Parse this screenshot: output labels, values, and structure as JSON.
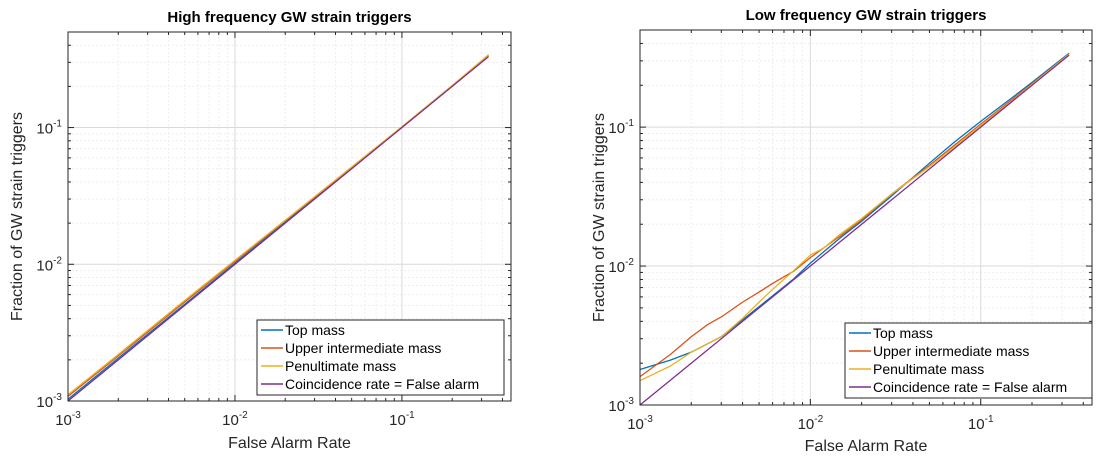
{
  "chart_data": [
    {
      "type": "line",
      "title": "High frequency GW strain triggers",
      "xlabel": "False Alarm Rate",
      "ylabel": "Fraction of GW strain triggers",
      "xscale": "log",
      "yscale": "log",
      "xlim": [
        0.001,
        0.45
      ],
      "ylim": [
        0.001,
        0.5
      ],
      "grid": true,
      "legend_position": "bottom-right",
      "xticks": [
        {
          "base": "10",
          "exp": "-3"
        },
        {
          "base": "10",
          "exp": "-2"
        },
        {
          "base": "10",
          "exp": "-1"
        }
      ],
      "yticks": [
        {
          "base": "10",
          "exp": "-3"
        },
        {
          "base": "10",
          "exp": "-2"
        },
        {
          "base": "10",
          "exp": "-1"
        }
      ],
      "series": [
        {
          "name": "Top mass",
          "color": "#0072BD",
          "x": [
            0.001,
            0.002,
            0.005,
            0.01,
            0.02,
            0.05,
            0.1,
            0.2,
            0.33
          ],
          "y": [
            0.00103,
            0.00206,
            0.0051,
            0.0102,
            0.0203,
            0.0505,
            0.1005,
            0.202,
            0.34
          ]
        },
        {
          "name": "Upper intermediate mass",
          "color": "#D95319",
          "x": [
            0.001,
            0.002,
            0.005,
            0.01,
            0.02,
            0.05,
            0.1,
            0.2,
            0.33
          ],
          "y": [
            0.00108,
            0.00214,
            0.0053,
            0.0105,
            0.0208,
            0.0512,
            0.101,
            0.201,
            0.336
          ]
        },
        {
          "name": "Penultimate mass",
          "color": "#EDB120",
          "x": [
            0.001,
            0.002,
            0.005,
            0.01,
            0.02,
            0.05,
            0.1,
            0.2,
            0.33
          ],
          "y": [
            0.00111,
            0.00219,
            0.00545,
            0.0107,
            0.021,
            0.0515,
            0.1015,
            0.203,
            0.34
          ]
        },
        {
          "name": "Coincidence rate = False alarm",
          "color": "#7E2F8E",
          "x": [
            0.001,
            0.33
          ],
          "y": [
            0.001,
            0.33
          ]
        }
      ]
    },
    {
      "type": "line",
      "title": "Low frequency GW strain triggers",
      "xlabel": "False Alarm Rate",
      "ylabel": "Fraction of GW strain triggers",
      "xscale": "log",
      "yscale": "log",
      "xlim": [
        0.001,
        0.45
      ],
      "ylim": [
        0.001,
        0.5
      ],
      "grid": true,
      "legend_position": "bottom-right",
      "xticks": [
        {
          "base": "10",
          "exp": "-3"
        },
        {
          "base": "10",
          "exp": "-2"
        },
        {
          "base": "10",
          "exp": "-1"
        }
      ],
      "yticks": [
        {
          "base": "10",
          "exp": "-3"
        },
        {
          "base": "10",
          "exp": "-2"
        },
        {
          "base": "10",
          "exp": "-1"
        }
      ],
      "series": [
        {
          "name": "Top mass",
          "color": "#0072BD",
          "x": [
            0.001,
            0.0015,
            0.002,
            0.003,
            0.004,
            0.005,
            0.006,
            0.008,
            0.01,
            0.015,
            0.02,
            0.03,
            0.05,
            0.07,
            0.1,
            0.15,
            0.2,
            0.33
          ],
          "y": [
            0.0018,
            0.0021,
            0.0024,
            0.0031,
            0.0041,
            0.0051,
            0.0061,
            0.0081,
            0.0105,
            0.016,
            0.021,
            0.032,
            0.055,
            0.078,
            0.11,
            0.16,
            0.21,
            0.34
          ]
        },
        {
          "name": "Upper intermediate mass",
          "color": "#D95319",
          "x": [
            0.001,
            0.0015,
            0.002,
            0.0025,
            0.003,
            0.004,
            0.005,
            0.006,
            0.008,
            0.01,
            0.015,
            0.02,
            0.03,
            0.05,
            0.07,
            0.1,
            0.15,
            0.2,
            0.33
          ],
          "y": [
            0.0016,
            0.0023,
            0.0031,
            0.0038,
            0.0043,
            0.0055,
            0.0065,
            0.0075,
            0.0092,
            0.0115,
            0.0165,
            0.0215,
            0.033,
            0.053,
            0.074,
            0.105,
            0.155,
            0.205,
            0.335
          ]
        },
        {
          "name": "Penultimate mass",
          "color": "#EDB120",
          "x": [
            0.001,
            0.0015,
            0.002,
            0.003,
            0.004,
            0.005,
            0.006,
            0.008,
            0.01,
            0.012,
            0.015,
            0.02,
            0.03,
            0.05,
            0.07,
            0.1,
            0.15,
            0.2,
            0.33
          ],
          "y": [
            0.0015,
            0.0019,
            0.0024,
            0.0031,
            0.0042,
            0.0055,
            0.0068,
            0.0093,
            0.012,
            0.0135,
            0.017,
            0.022,
            0.033,
            0.052,
            0.072,
            0.103,
            0.152,
            0.203,
            0.335
          ]
        },
        {
          "name": "Coincidence rate = False alarm",
          "color": "#7E2F8E",
          "x": [
            0.001,
            0.33
          ],
          "y": [
            0.001,
            0.33
          ]
        }
      ]
    }
  ]
}
